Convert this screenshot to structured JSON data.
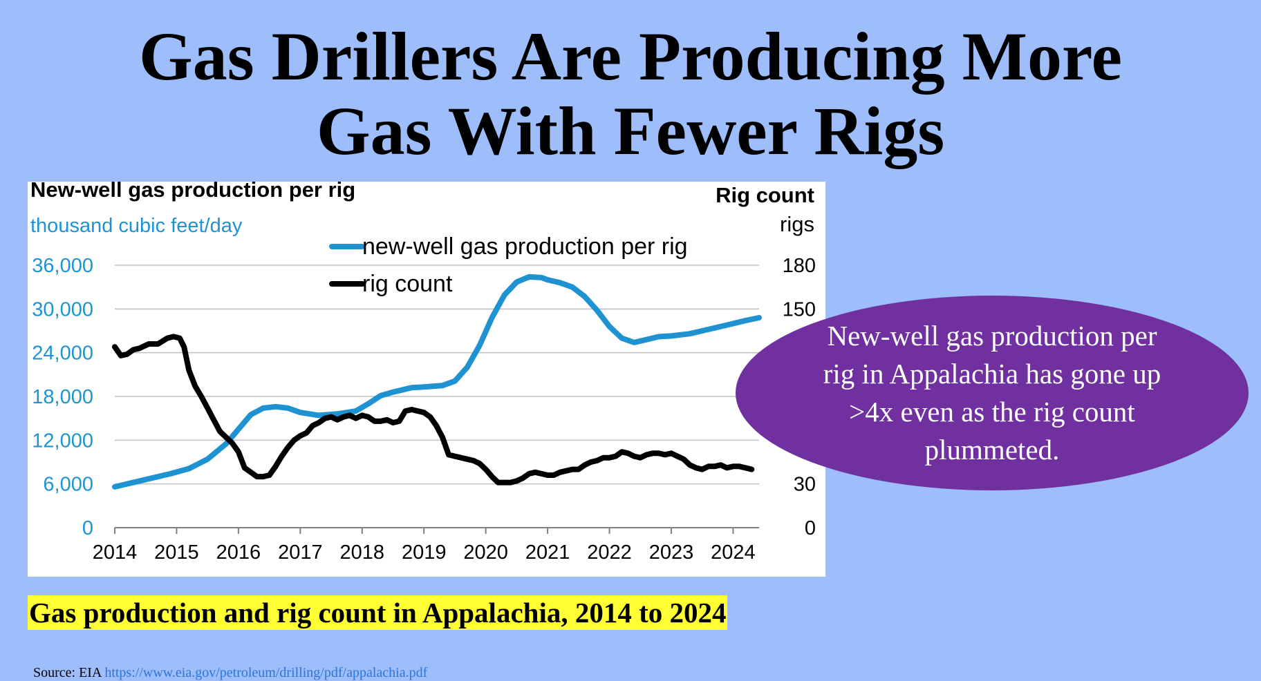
{
  "slide": {
    "title_line1": "Gas Drillers Are Producing More",
    "title_line2": "Gas With Fewer Rigs",
    "callout": "New-well gas production per rig in Appalachia has gone up >4x even as the rig count plummeted.",
    "caption": "Gas production and rig count in Appalachia, 2014 to 2024",
    "source_label": "Source: EIA",
    "source_link": "https://www.eia.gov/petroleum/drilling/pdf/appalachia.pdf"
  },
  "colors": {
    "background": "#9dbdfb",
    "production_series": "#1f93d2",
    "rig_series": "#000000",
    "callout_fill": "#7030a0",
    "caption_highlight": "#ffff33"
  },
  "chart_data": {
    "type": "line",
    "left_axis_title": "New-well gas production per rig",
    "left_axis_unit": "thousand cubic feet/day",
    "right_axis_title": "Rig count",
    "right_axis_unit": "rigs",
    "left_ylim": [
      0,
      36000
    ],
    "right_ylim": [
      0,
      180
    ],
    "left_ticks": [
      "0",
      "6,000",
      "12,000",
      "18,000",
      "24,000",
      "30,000",
      "36,000"
    ],
    "right_ticks": [
      {
        "value": 0,
        "label": "0"
      },
      {
        "value": 30,
        "label": "30"
      },
      {
        "value": 150,
        "label": "150"
      },
      {
        "value": 180,
        "label": "180"
      }
    ],
    "x_ticks": [
      "2014",
      "2015",
      "2016",
      "2017",
      "2018",
      "2019",
      "2020",
      "2021",
      "2022",
      "2023",
      "2024"
    ],
    "xlim": [
      2014,
      2024.42
    ],
    "grid": true,
    "legend_position": "top-center",
    "series": [
      {
        "name": "new-well gas production per rig",
        "axis": "left",
        "x": [
          2014.0,
          2014.5,
          2014.9,
          2015.2,
          2015.5,
          2015.8,
          2016.0,
          2016.2,
          2016.4,
          2016.6,
          2016.8,
          2017.0,
          2017.3,
          2017.6,
          2017.9,
          2018.1,
          2018.3,
          2018.5,
          2018.8,
          2019.0,
          2019.3,
          2019.5,
          2019.7,
          2019.9,
          2020.1,
          2020.3,
          2020.5,
          2020.7,
          2020.9,
          2021.0,
          2021.2,
          2021.4,
          2021.6,
          2021.8,
          2022.0,
          2022.2,
          2022.4,
          2022.6,
          2022.8,
          2023.0,
          2023.3,
          2023.6,
          2023.9,
          2024.2,
          2024.42
        ],
        "values": [
          5600,
          6600,
          7400,
          8100,
          9400,
          11500,
          13500,
          15500,
          16400,
          16600,
          16400,
          15800,
          15400,
          15600,
          16000,
          17000,
          18100,
          18600,
          19200,
          19300,
          19500,
          20100,
          22000,
          25000,
          28800,
          31900,
          33700,
          34400,
          34300,
          34000,
          33600,
          33000,
          31700,
          29800,
          27600,
          26000,
          25400,
          25800,
          26200,
          26300,
          26600,
          27200,
          27800,
          28400,
          28800
        ]
      },
      {
        "name": "rig count",
        "axis": "right",
        "x": [
          2014.0,
          2014.1,
          2014.2,
          2014.3,
          2014.4,
          2014.55,
          2014.7,
          2014.85,
          2014.95,
          2015.05,
          2015.12,
          2015.2,
          2015.3,
          2015.4,
          2015.5,
          2015.6,
          2015.7,
          2015.8,
          2015.9,
          2016.0,
          2016.1,
          2016.2,
          2016.3,
          2016.4,
          2016.5,
          2016.6,
          2016.7,
          2016.8,
          2016.9,
          2017.0,
          2017.1,
          2017.2,
          2017.3,
          2017.4,
          2017.5,
          2017.6,
          2017.7,
          2017.8,
          2017.9,
          2018.0,
          2018.1,
          2018.2,
          2018.3,
          2018.4,
          2018.5,
          2018.6,
          2018.7,
          2018.8,
          2018.9,
          2019.0,
          2019.1,
          2019.2,
          2019.3,
          2019.4,
          2019.5,
          2019.6,
          2019.7,
          2019.8,
          2019.9,
          2020.0,
          2020.1,
          2020.2,
          2020.3,
          2020.4,
          2020.5,
          2020.6,
          2020.7,
          2020.8,
          2020.9,
          2021.0,
          2021.1,
          2021.2,
          2021.3,
          2021.4,
          2021.5,
          2021.6,
          2021.7,
          2021.8,
          2021.9,
          2022.0,
          2022.1,
          2022.2,
          2022.3,
          2022.4,
          2022.5,
          2022.6,
          2022.7,
          2022.8,
          2022.9,
          2023.0,
          2023.1,
          2023.2,
          2023.3,
          2023.4,
          2023.5,
          2023.6,
          2023.7,
          2023.8,
          2023.9,
          2024.0,
          2024.1,
          2024.2,
          2024.3
        ],
        "values": [
          124,
          118,
          119,
          122,
          123,
          126,
          126,
          130,
          131,
          130,
          124,
          108,
          97,
          90,
          82,
          74,
          66,
          62,
          58,
          52,
          41,
          38,
          35,
          35,
          36,
          42,
          49,
          55,
          60,
          63,
          65,
          70,
          72,
          75,
          76,
          74,
          76,
          77,
          75,
          77,
          76,
          73,
          73,
          74,
          72,
          73,
          80,
          81,
          80,
          79,
          76,
          70,
          62,
          50,
          49,
          48,
          47,
          46,
          44,
          40,
          35,
          31,
          31,
          31,
          32,
          34,
          37,
          38,
          37,
          36,
          36,
          38,
          39,
          40,
          40,
          43,
          45,
          46,
          48,
          48,
          49,
          52,
          51,
          49,
          48,
          50,
          51,
          51,
          50,
          51,
          49,
          47,
          43,
          41,
          40,
          42,
          42,
          43,
          41,
          42,
          42,
          41,
          40
        ]
      }
    ]
  }
}
